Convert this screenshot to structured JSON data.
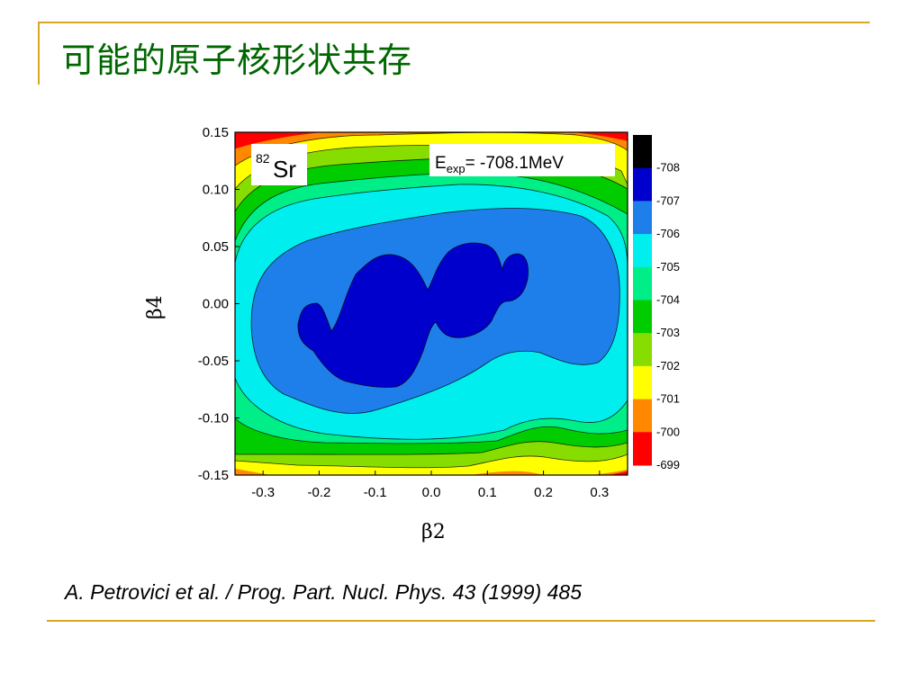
{
  "slide": {
    "title": "可能的原子核形状共存",
    "citation": "A. Petrovici et al. / Prog. Part. Nucl. Phys. 43 (1999) 485"
  },
  "chart_data": {
    "type": "contour",
    "xlabel": "β2",
    "ylabel": "β4",
    "xlim": [
      -0.35,
      0.35
    ],
    "ylim": [
      -0.15,
      0.15
    ],
    "x_ticks": [
      "-0.3",
      "-0.2",
      "-0.1",
      "0.0",
      "0.1",
      "0.2",
      "0.3"
    ],
    "x_tick_values": [
      -0.3,
      -0.2,
      -0.1,
      0.0,
      0.1,
      0.2,
      0.3
    ],
    "y_ticks": [
      "0.15",
      "0.10",
      "0.05",
      "0.00",
      "-0.05",
      "-0.10",
      "-0.15"
    ],
    "y_tick_values": [
      0.15,
      0.1,
      0.05,
      0.0,
      -0.05,
      -0.1,
      -0.15
    ],
    "nucleus": {
      "mass_number": "82",
      "symbol": "Sr"
    },
    "annotation": {
      "main": "E",
      "subscript": "exp",
      "rest": "= -708.1MeV"
    },
    "colorbar": {
      "labels": [
        "-708",
        "-707",
        "-706",
        "-705",
        "-704",
        "-703",
        "-702",
        "-701",
        "-700",
        "-699"
      ],
      "colors": [
        "#000000",
        "#0000cc",
        "#1e7fea",
        "#00eeee",
        "#00ee88",
        "#00cc00",
        "#88dd00",
        "#ffff00",
        "#ff8800",
        "#ff0000"
      ]
    }
  }
}
